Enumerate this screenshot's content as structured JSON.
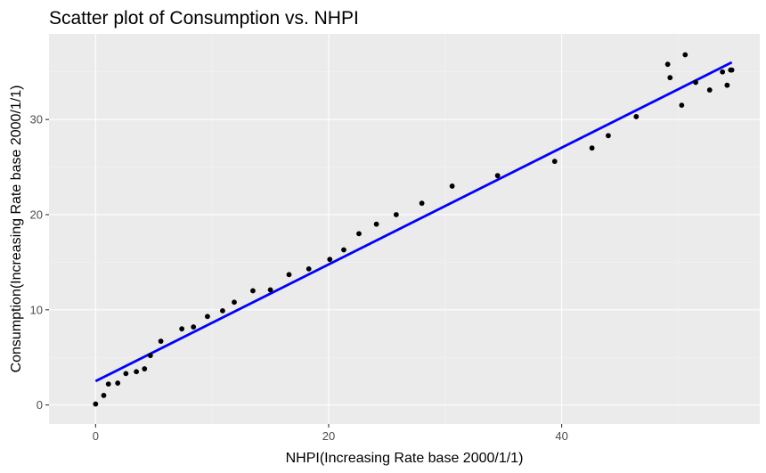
{
  "chart_data": {
    "type": "scatter",
    "title": "Scatter plot of Consumption vs. NHPI",
    "xlabel": "NHPI(Increasing Rate base 2000/1/1)",
    "ylabel": "Consumption(Increasing Rate base 2000/1/1)",
    "xlim": [
      -4,
      57
    ],
    "ylim": [
      -2,
      39
    ],
    "x_ticks": [
      0,
      20,
      40
    ],
    "x_tick_labels": [
      "0",
      "20",
      "40"
    ],
    "y_ticks": [
      0,
      10,
      20,
      30
    ],
    "y_tick_labels": [
      "0",
      "10",
      "20",
      "30"
    ],
    "grid": true,
    "legend": "none",
    "point_color": "#000000",
    "line_color": "#0000FF",
    "panel_background": "#EBEBEB",
    "series": [
      {
        "type": "scatter",
        "x": [
          0,
          0.7,
          1.1,
          1.9,
          2.6,
          3.5,
          4.2,
          4.7,
          5.6,
          7.4,
          8.4,
          9.6,
          10.9,
          11.9,
          13.5,
          15,
          16.6,
          18.3,
          20.1,
          21.3,
          22.6,
          24.1,
          25.8,
          28,
          30.6,
          34.5,
          39.4,
          42.6,
          44,
          46.4,
          49.1,
          49.3,
          50.3,
          50.6,
          51.5,
          52.7,
          53.8,
          54.2,
          54.5,
          54.6
        ],
        "y": [
          0.1,
          1.0,
          2.2,
          2.3,
          3.3,
          3.5,
          3.8,
          5.2,
          6.7,
          8.0,
          8.2,
          9.3,
          9.9,
          10.8,
          12.0,
          12.1,
          13.7,
          14.3,
          15.3,
          16.3,
          18.0,
          19.0,
          20.0,
          21.2,
          23.0,
          24.1,
          25.6,
          27.0,
          28.3,
          30.3,
          35.8,
          34.4,
          31.5,
          36.8,
          33.9,
          33.1,
          35.0,
          33.6,
          35.2,
          35.2
        ]
      },
      {
        "type": "line",
        "x": [
          0,
          54.6
        ],
        "y": [
          2.5,
          36.0
        ]
      }
    ]
  }
}
